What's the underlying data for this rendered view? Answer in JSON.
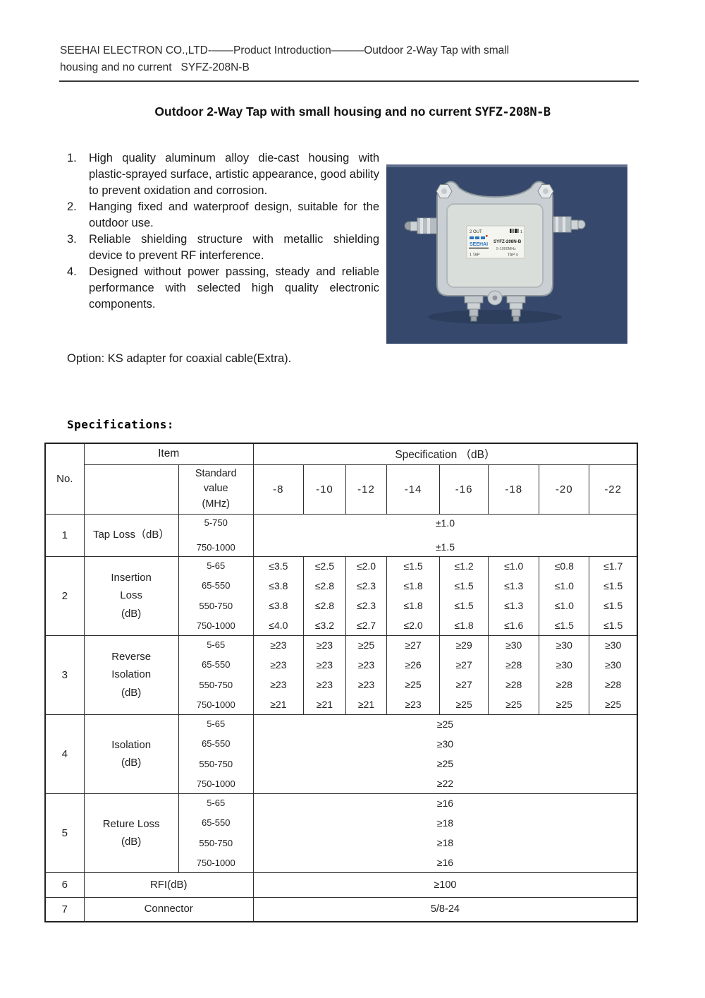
{
  "page": {
    "header_line1": "SEEHAI ELECTRON CO.,LTD-——Product Introduction———Outdoor 2-Way Tap with small",
    "header_line2": "housing and no current   SYFZ-208N-B",
    "title_main": "Outdoor 2-Way Tap with small housing and no current",
    "title_model": "SYFZ-208N-B",
    "option_text": "Option: KS adapter for coaxial cable(Extra).",
    "specifications_heading": "Specifications:"
  },
  "features": {
    "items": [
      {
        "num": "1.",
        "text": "High quality aluminum alloy die-cast housing with plastic-sprayed surface, artistic appearance, good ability to prevent oxidation and corrosion."
      },
      {
        "num": "2.",
        "text": "Hanging fixed and waterproof design, suitable for the outdoor use."
      },
      {
        "num": "3.",
        "text": "Reliable shielding structure with metallic shielding device to prevent RF interference."
      },
      {
        "num": "4.",
        "text": "Designed without power passing, steady and reliable performance with selected high quality electronic components."
      }
    ]
  },
  "photo": {
    "label": {
      "port_top_left": "2 OUT",
      "port_top_right": "1",
      "brand": "SEEHAI",
      "model": "SYFZ-208N-B",
      "freq": "5-1000MHz",
      "port_bottom_left": "1 TAP",
      "port_bottom_right": "TAP 4"
    },
    "colors": {
      "background": "#36496c",
      "body": "#c9cfd2",
      "inner": "#dadedb",
      "label_bg": "#f5f5f0",
      "brand_blue": "#2673c2"
    }
  },
  "table": {
    "header": {
      "no": "No.",
      "item": "Item",
      "spec": "Specification （dB）",
      "standard": "Standard\nvalue\n(MHz)",
      "tap_values": [
        "-8",
        "-10",
        "-12",
        "-14",
        "-16",
        "-18",
        "-20",
        "-22"
      ]
    },
    "rows": [
      {
        "no": "1",
        "item": "Tap Loss（dB）",
        "type": "merged",
        "bands": [
          "5-750",
          "750-1000"
        ],
        "merged": [
          "±1.0",
          "±1.5"
        ]
      },
      {
        "no": "2",
        "item": "Insertion\nLoss\n(dB)",
        "type": "grid",
        "bands": [
          "5-65",
          "65-550",
          "550-750",
          "750-1000"
        ],
        "grid": [
          [
            "≤3.5",
            "≤2.5",
            "≤2.0",
            "≤1.5",
            "≤1.2",
            "≤1.0",
            "≤0.8",
            "≤1.7"
          ],
          [
            "≤3.8",
            "≤2.8",
            "≤2.3",
            "≤1.8",
            "≤1.5",
            "≤1.3",
            "≤1.0",
            "≤1.5"
          ],
          [
            "≤3.8",
            "≤2.8",
            "≤2.3",
            "≤1.8",
            "≤1.5",
            "≤1.3",
            "≤1.0",
            "≤1.5"
          ],
          [
            "≤4.0",
            "≤3.2",
            "≤2.7",
            "≤2.0",
            "≤1.8",
            "≤1.6",
            "≤1.5",
            "≤1.5"
          ]
        ]
      },
      {
        "no": "3",
        "item": "Reverse\nIsolation\n(dB)",
        "type": "grid",
        "bands": [
          "5-65",
          "65-550",
          "550-750",
          "750-1000"
        ],
        "grid": [
          [
            "≥23",
            "≥23",
            "≥25",
            "≥27",
            "≥29",
            "≥30",
            "≥30",
            "≥30"
          ],
          [
            "≥23",
            "≥23",
            "≥23",
            "≥26",
            "≥27",
            "≥28",
            "≥30",
            "≥30"
          ],
          [
            "≥23",
            "≥23",
            "≥23",
            "≥25",
            "≥27",
            "≥28",
            "≥28",
            "≥28"
          ],
          [
            "≥21",
            "≥21",
            "≥21",
            "≥23",
            "≥25",
            "≥25",
            "≥25",
            "≥25"
          ]
        ]
      },
      {
        "no": "4",
        "item": "Isolation\n(dB)",
        "type": "merged",
        "bands": [
          "5-65",
          "65-550",
          "550-750",
          "750-1000"
        ],
        "merged": [
          "≥25",
          "≥30",
          "≥25",
          "≥22"
        ]
      },
      {
        "no": "5",
        "item": "Reture Loss\n(dB)",
        "type": "merged",
        "bands": [
          "5-65",
          "65-550",
          "550-750",
          "750-1000"
        ],
        "merged": [
          "≥16",
          "≥18",
          "≥18",
          "≥16"
        ]
      },
      {
        "no": "6",
        "item": "RFI(dB)",
        "type": "simple",
        "value": "≥100"
      },
      {
        "no": "7",
        "item": "Connector",
        "type": "simple",
        "value": "5/8-24"
      }
    ]
  }
}
